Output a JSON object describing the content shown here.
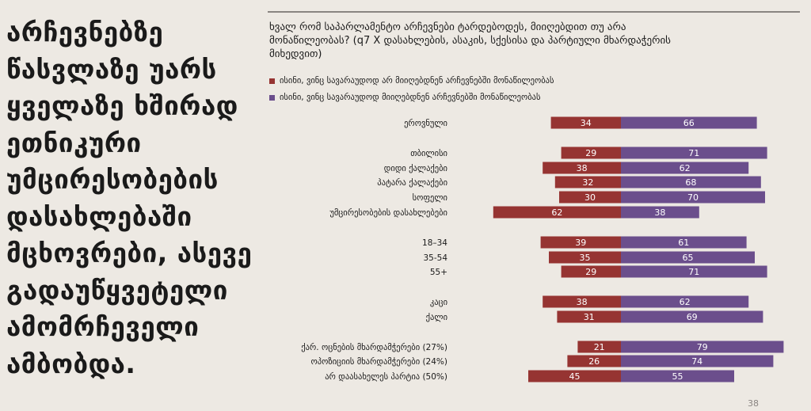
{
  "headline": "არჩევნებზე წასვლაზე უარს ყველაზე ხშირად ეთნიკური უმცირესობების დასახლებაში მცხოვრები, ასევე გადაუწყვეტელი ამომრჩეველი ამბობდა.",
  "page_number": "38",
  "colors": {
    "background": "#ede9e3",
    "no_series": "#963432",
    "yes_series": "#6b4e8c"
  },
  "chart_data": {
    "type": "bar",
    "orientation": "horizontal",
    "stacked": true,
    "title": "ხვალ რომ საპარლამენტო არჩევნები ტარდებოდეს, მიიღებდით თუ არა მონაწილეობას? (q7 X დასახლების, ასაკის, სქესისა და პარტიული მხარდაჭერის მიხედვით)",
    "categories": [
      "ეროვნული",
      "თბილისი",
      "დიდი ქალაქები",
      "პატარა ქალაქები",
      "სოფელი",
      "უმცირესობების დასახლებები",
      "18–34",
      "35-54",
      "55+",
      "კაცი",
      "ქალი",
      "ქარ. ოცნების მხარდამჭერები (27%)",
      "ოპოზიციის მხარდამჭერები (24%)",
      "არ დაასახელეს პარტია (50%)"
    ],
    "series": [
      {
        "name": "ისინი, ვინც სავარაუდოდ არ მიიღებდნენ არჩევნებში მონაწილეობას",
        "color": "#963432",
        "values": [
          34,
          29,
          38,
          32,
          30,
          62,
          39,
          35,
          29,
          38,
          31,
          21,
          26,
          45
        ]
      },
      {
        "name": "ისინი, ვინც სავარაუდოდ მიიღებდნენ არჩევნებში მონაწილეობას",
        "color": "#6b4e8c",
        "values": [
          66,
          71,
          62,
          68,
          70,
          38,
          61,
          65,
          71,
          62,
          69,
          79,
          74,
          55
        ]
      }
    ],
    "legend": "top-left",
    "grid": false
  }
}
